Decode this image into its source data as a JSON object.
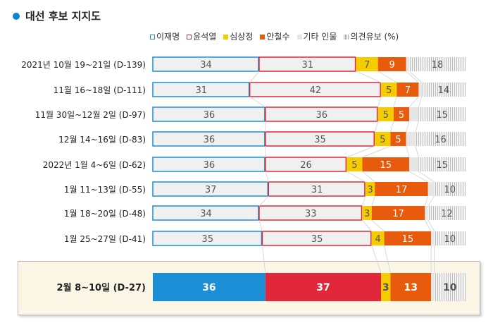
{
  "header": {
    "title": "대선 후보 지지도"
  },
  "chart_data": {
    "type": "bar",
    "orientation": "horizontal",
    "stacked": true,
    "title": "대선 후보 지지도",
    "unit": "%",
    "legend": [
      "이재명",
      "윤석열",
      "심상정",
      "안철수",
      "기타 인물",
      "의견유보 (%)"
    ],
    "categories": [
      "2021년 10월 19~21일 (D-139)",
      "11월 16~18일 (D-111)",
      "11월 30일~12월 2일 (D-97)",
      "12월 14~16일 (D-83)",
      "2022년 1월 4~6일 (D-62)",
      "1월 11~13일 (D-55)",
      "1월 18~20일 (D-48)",
      "1월 25~27일 (D-41)",
      "2월 8~10일 (D-27)"
    ],
    "series": [
      {
        "name": "이재명",
        "color": "#1a8fd6",
        "values": [
          34,
          31,
          36,
          36,
          36,
          37,
          34,
          35,
          36
        ]
      },
      {
        "name": "윤석열",
        "color": "#e0283a",
        "values": [
          31,
          42,
          36,
          35,
          26,
          31,
          33,
          35,
          37
        ]
      },
      {
        "name": "심상정",
        "color": "#f5cc00",
        "values": [
          7,
          5,
          5,
          5,
          5,
          3,
          3,
          4,
          3
        ]
      },
      {
        "name": "안철수",
        "color": "#e85a0c",
        "values": [
          9,
          7,
          5,
          5,
          15,
          17,
          17,
          15,
          13
        ]
      },
      {
        "name": "기타 인물",
        "color": "#eeeeee",
        "values": [
          1,
          1,
          3,
          3,
          3,
          2,
          1,
          1,
          1
        ]
      },
      {
        "name": "의견유보",
        "color": "#d0d0d0",
        "values": [
          18,
          14,
          15,
          16,
          15,
          10,
          12,
          10,
          10
        ]
      }
    ],
    "highlighted_category": "2월 8~10일 (D-27)",
    "xlim": [
      0,
      100
    ]
  }
}
